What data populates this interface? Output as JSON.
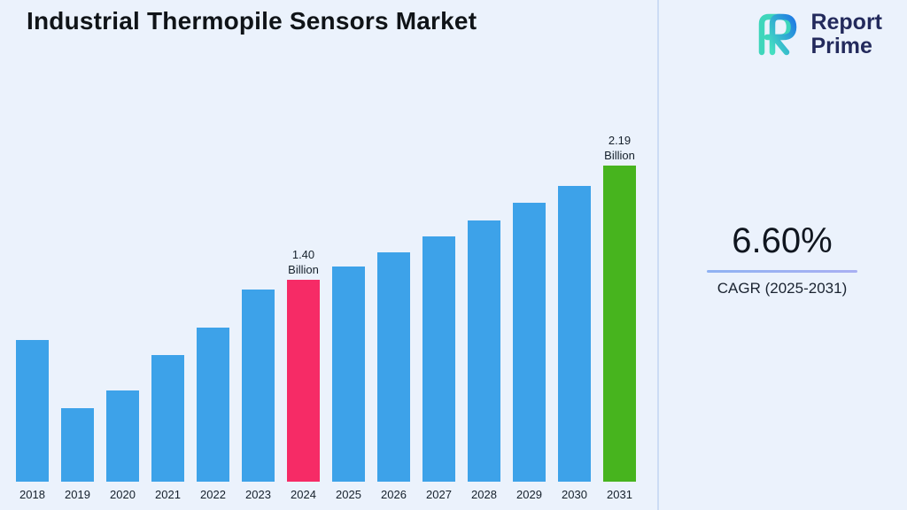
{
  "header": {
    "title": "Industrial Thermopile Sensors Market",
    "brand": {
      "line1": "Report",
      "line2": "Prime",
      "logo_icon": "report-prime-logo-icon",
      "logo_colors": {
        "teal": "#3fd6bb",
        "blue": "#1f7be4",
        "navy": "#232a5c"
      }
    }
  },
  "cagr": {
    "value": "6.60%",
    "label": "CAGR (2025-2031)",
    "underline_color": "#9bb3f2"
  },
  "chart_data": {
    "type": "bar",
    "title": "Industrial Thermopile Sensors Market",
    "xlabel": "",
    "ylabel": "",
    "unit": "Billion",
    "categories": [
      "2018",
      "2019",
      "2020",
      "2021",
      "2022",
      "2023",
      "2024",
      "2025",
      "2026",
      "2027",
      "2028",
      "2029",
      "2030",
      "2031"
    ],
    "values": [
      0.98,
      0.51,
      0.63,
      0.88,
      1.07,
      1.33,
      1.4,
      1.49,
      1.59,
      1.7,
      1.81,
      1.93,
      2.05,
      2.19
    ],
    "ylim": [
      0,
      2.4
    ],
    "grid": false,
    "legend": false,
    "bar_color_default": "#3da2e9",
    "bar_colors_override": {
      "2024": "#f62b66",
      "2031": "#47b41e"
    },
    "annotations": [
      {
        "category": "2024",
        "lines": [
          "1.40",
          "Billion"
        ]
      },
      {
        "category": "2031",
        "lines": [
          "2.19",
          "Billion"
        ]
      }
    ]
  }
}
